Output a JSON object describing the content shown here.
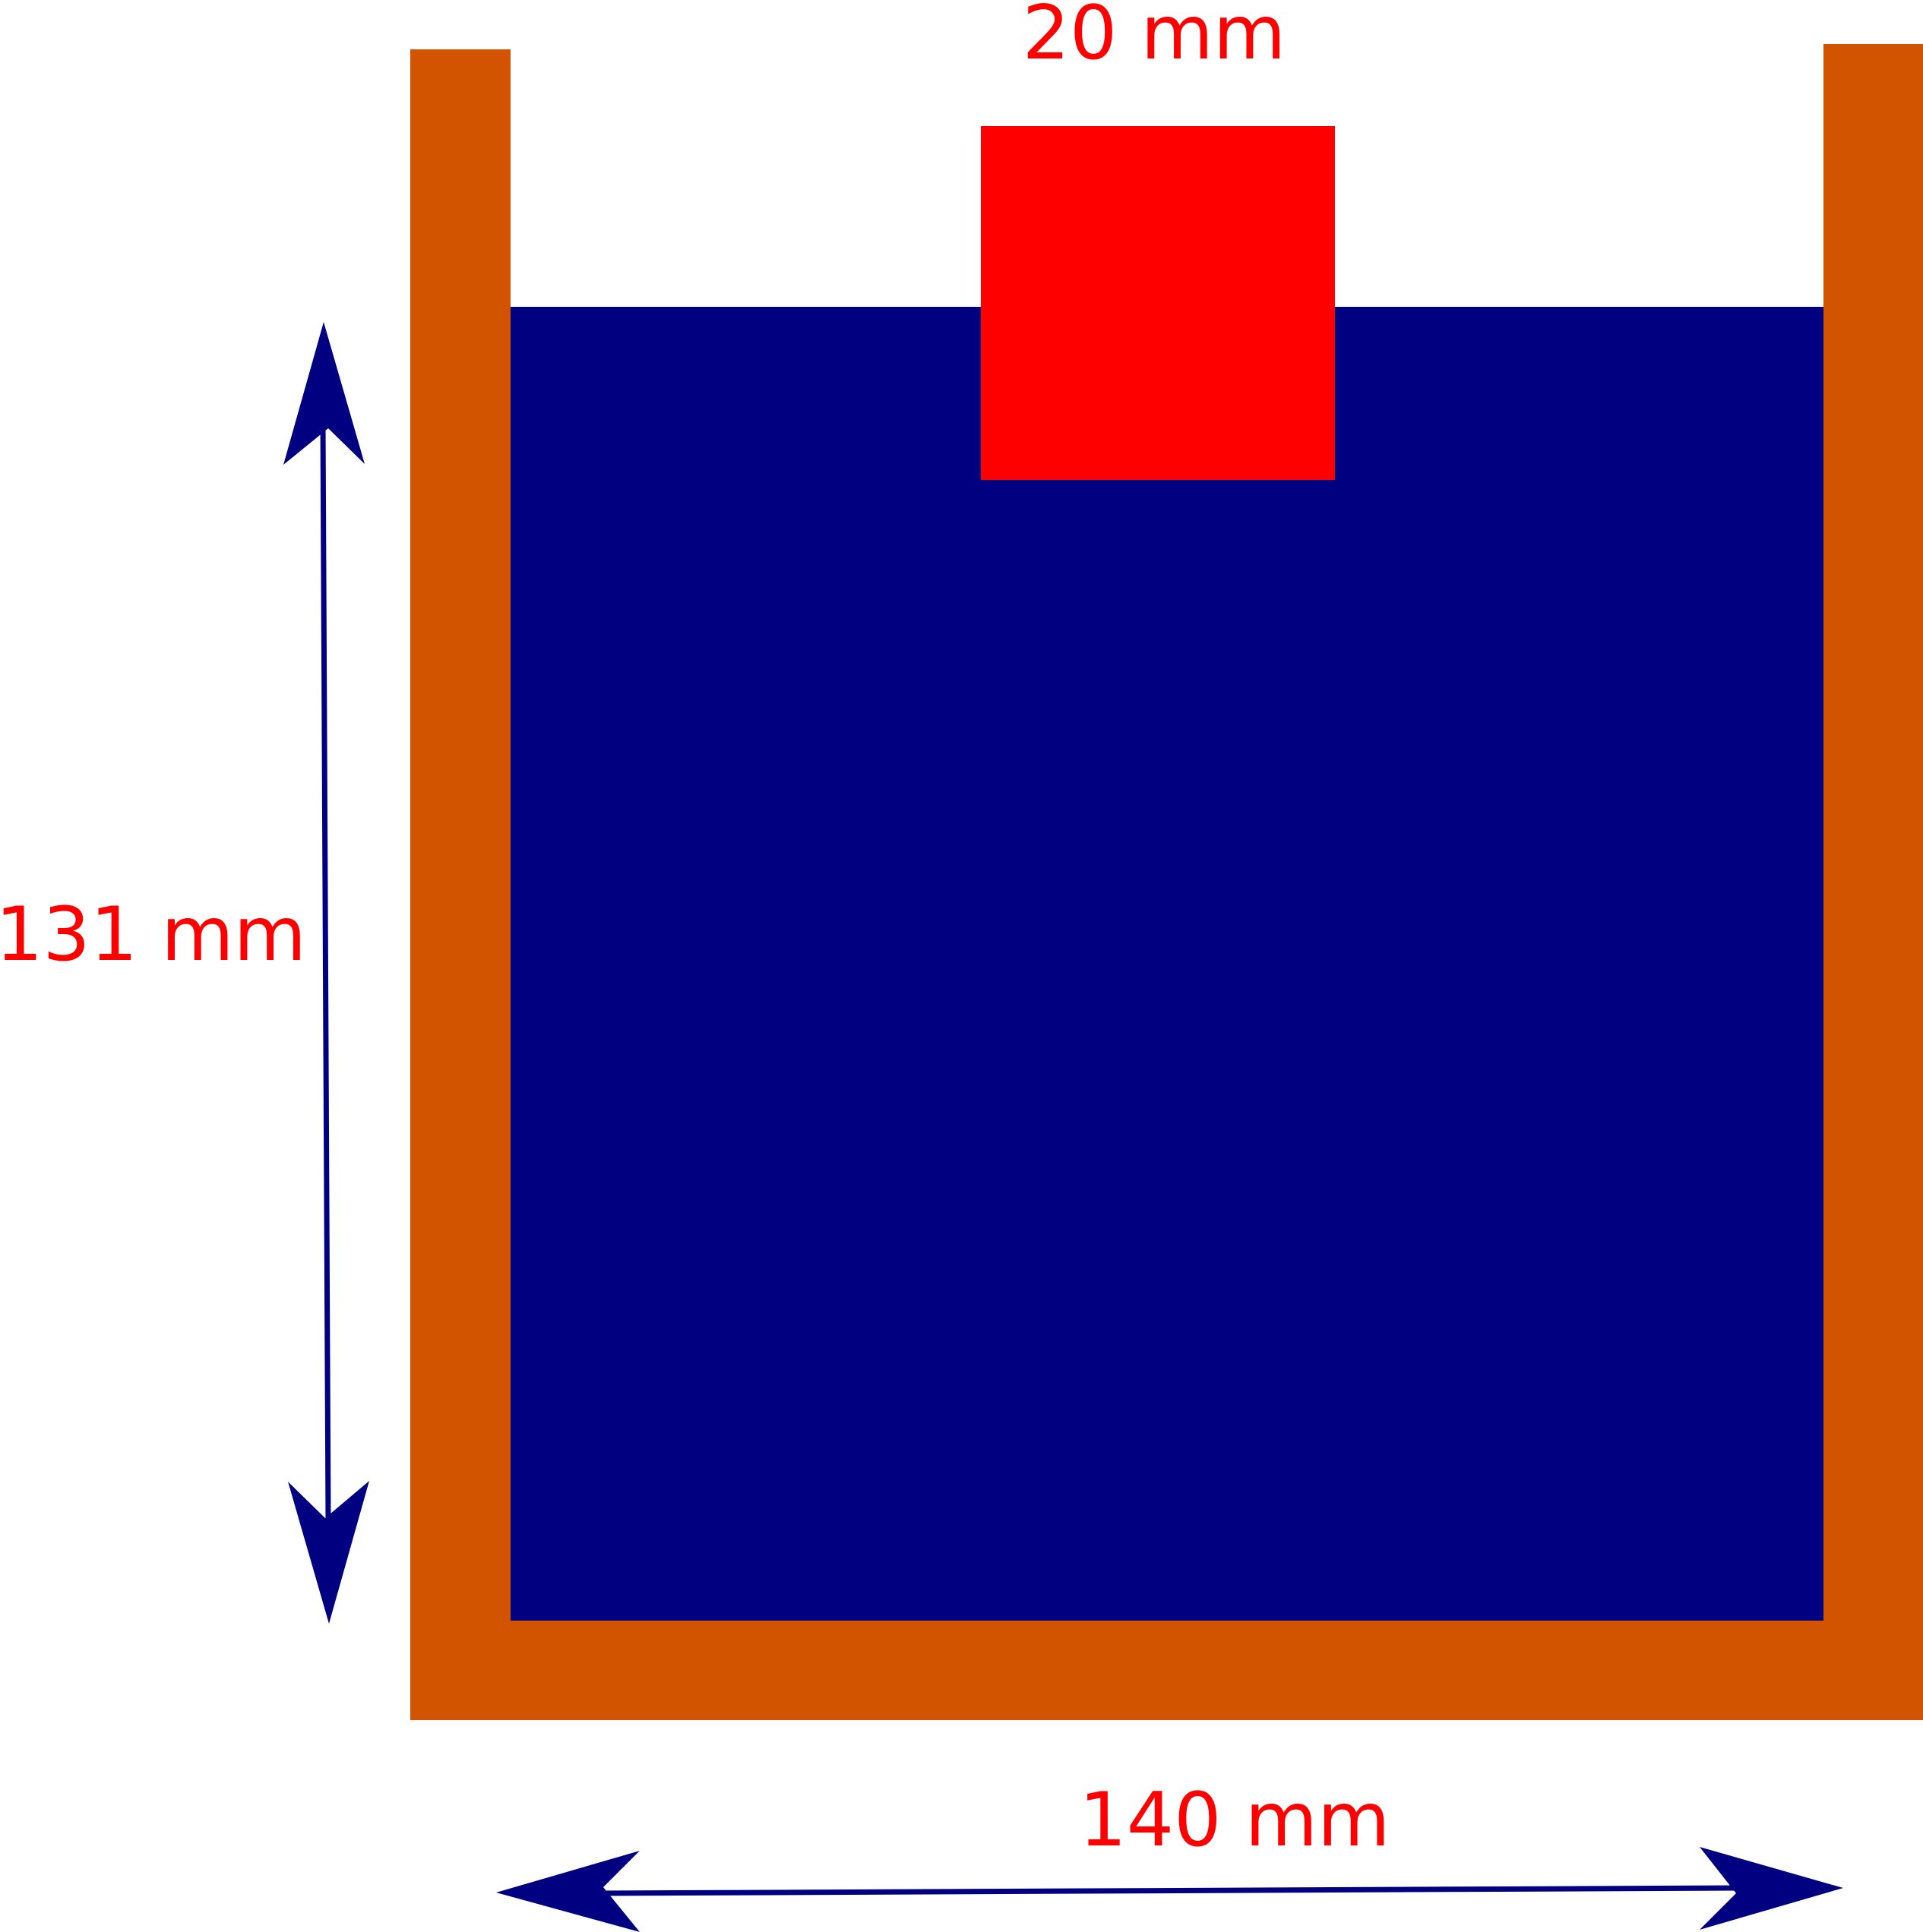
{
  "labels": {
    "top_width": "20 mm",
    "height": "131 mm",
    "bottom_width": "140 mm"
  },
  "colors": {
    "container": "#d35400",
    "liquid": "#000080",
    "block": "#ff0000",
    "arrow": "#000080",
    "label": "#ff0000"
  },
  "icons": {
    "arrow_head": "arrowhead"
  }
}
